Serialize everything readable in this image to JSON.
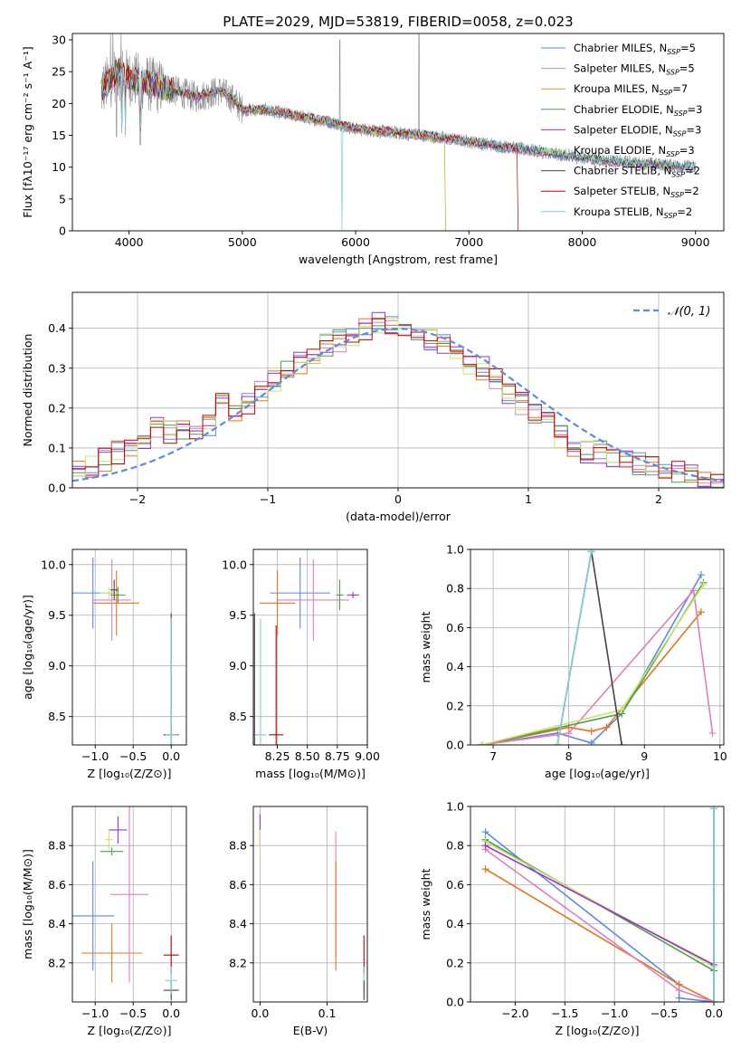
{
  "figure": {
    "title": "PLATE=2029, MJD=53819, FIBERID=0058, z=0.023"
  },
  "colors": {
    "chabrier_miles": "#5b8be0",
    "salpeter_miles": "#e07fbf",
    "kroupa_miles": "#c9a227",
    "chabrier_elodie": "#4a9e4a",
    "salpeter_elodie": "#9b30d0",
    "kroupa_elodie": "#c8e36a",
    "chabrier_stelib": "#444444",
    "salpeter_stelib": "#c00000",
    "kroupa_stelib": "#80d0dc",
    "orange": "#e8731a"
  },
  "chart_data": [
    {
      "id": "spectrum",
      "type": "line",
      "title": "PLATE=2029, MJD=53819, FIBERID=0058, z=0.023",
      "xlabel": "wavelength [Angstrom, rest frame]",
      "ylabel": "Flux [fλ10⁻¹⁷ erg cm⁻² s⁻¹ A⁻¹]",
      "xlim": [
        3500,
        9250
      ],
      "ylim": [
        0,
        31
      ],
      "xticks": [
        4000,
        5000,
        6000,
        7000,
        8000,
        9000
      ],
      "yticks": [
        0,
        5,
        10,
        15,
        20,
        25,
        30
      ],
      "legend_position": "upper-right",
      "series": [
        {
          "name": "Chabrier MILES, N_SSP=5",
          "color": "#5b8be0"
        },
        {
          "name": "Salpeter MILES, N_SSP=5",
          "color": "#e07fbf"
        },
        {
          "name": "Kroupa MILES, N_SSP=7",
          "color": "#c9a227"
        },
        {
          "name": "Chabrier ELODIE, N_SSP=3",
          "color": "#4a9e4a"
        },
        {
          "name": "Salpeter ELODIE, N_SSP=3",
          "color": "#9b30d0"
        },
        {
          "name": "Kroupa ELODIE, N_SSP=3",
          "color": "#c8e36a"
        },
        {
          "name": "Chabrier STELIB, N_SSP=2",
          "color": "#444444"
        },
        {
          "name": "Salpeter STELIB, N_SSP=2",
          "color": "#c00000"
        },
        {
          "name": "Kroupa STELIB, N_SSP=2",
          "color": "#80d0dc"
        }
      ],
      "continuum": {
        "x": [
          3750,
          3900,
          4000,
          4200,
          4400,
          4600,
          4800,
          4900,
          5000,
          5200,
          5500,
          5800,
          6000,
          6300,
          6600,
          7000,
          7400,
          7800,
          8200,
          8600,
          9000
        ],
        "y": [
          22,
          25,
          24,
          23,
          22,
          21,
          22,
          21,
          19,
          19,
          18,
          17,
          16,
          15.5,
          15,
          14,
          13,
          12,
          11,
          10.5,
          10
        ]
      }
    },
    {
      "id": "residuals",
      "type": "area",
      "xlabel": "(data-model)/error",
      "ylabel": "Normed distribution",
      "xlim": [
        -2.5,
        2.5
      ],
      "ylim": [
        0,
        0.49
      ],
      "xticks": [
        -2,
        -1,
        0,
        1,
        2
      ],
      "yticks": [
        0.0,
        0.1,
        0.2,
        0.3,
        0.4
      ],
      "grid": true,
      "legend_position": "upper-right",
      "legend": "𝒩(0, 1)",
      "normal_curve_color": "#5b8be0",
      "histogram_bins": [
        -2.5,
        -2.4,
        -2.3,
        -2.2,
        -2.1,
        -2.0,
        -1.9,
        -1.8,
        -1.7,
        -1.6,
        -1.5,
        -1.4,
        -1.3,
        -1.2,
        -1.1,
        -1.0,
        -0.9,
        -0.8,
        -0.7,
        -0.6,
        -0.5,
        -0.4,
        -0.3,
        -0.2,
        -0.1,
        0.0,
        0.1,
        0.2,
        0.3,
        0.4,
        0.5,
        0.6,
        0.7,
        0.8,
        0.9,
        1.0,
        1.1,
        1.2,
        1.3,
        1.4,
        1.5,
        1.6,
        1.7,
        1.8,
        1.9,
        2.0,
        2.1,
        2.2,
        2.3,
        2.4,
        2.5
      ],
      "histogram_mean": [
        0.04,
        0.05,
        0.07,
        0.09,
        0.1,
        0.11,
        0.15,
        0.14,
        0.15,
        0.15,
        0.16,
        0.22,
        0.19,
        0.21,
        0.24,
        0.27,
        0.29,
        0.31,
        0.33,
        0.36,
        0.37,
        0.37,
        0.4,
        0.41,
        0.41,
        0.4,
        0.38,
        0.37,
        0.36,
        0.34,
        0.31,
        0.3,
        0.27,
        0.24,
        0.21,
        0.18,
        0.16,
        0.13,
        0.1,
        0.09,
        0.09,
        0.08,
        0.07,
        0.06,
        0.05,
        0.04,
        0.04,
        0.03,
        0.02,
        0.02
      ]
    },
    {
      "id": "age-vs-z",
      "type": "scatter",
      "xlabel": "Z [log₁₀(Z/Z⊙)]",
      "ylabel": "age  [log₁₀(age/yr)]",
      "xlim": [
        -1.3,
        0.2
      ],
      "ylim": [
        8.22,
        10.15
      ],
      "xticks": [
        -1.0,
        -0.5,
        0.0
      ],
      "yticks": [
        8.5,
        9.0,
        9.5,
        10.0
      ],
      "grid": true,
      "points": [
        {
          "x": -1.03,
          "y": 9.72,
          "xerr": 0.28,
          "yerr": 0.35,
          "color": "#5b8be0"
        },
        {
          "x": -0.72,
          "y": 9.62,
          "xerr": 0.3,
          "yerr": 0.32,
          "color": "#e8731a"
        },
        {
          "x": -0.78,
          "y": 9.65,
          "xerr": 0.25,
          "yerr": 0.4,
          "color": "#e07fbf"
        },
        {
          "x": -0.7,
          "y": 9.7,
          "xerr": 0.1,
          "yerr": 0.08,
          "color": "#4a9e4a"
        },
        {
          "x": -0.82,
          "y": 9.72,
          "xerr": 0.12,
          "yerr": 0.06,
          "color": "#c8e36a"
        },
        {
          "x": -0.75,
          "y": 9.75,
          "xerr": 0.05,
          "yerr": 0.1,
          "color": "#444444"
        },
        {
          "x": 0.0,
          "y": 8.32,
          "xerr": 0.1,
          "yerr": 1.2,
          "color": "#444444"
        },
        {
          "x": 0.0,
          "y": 8.32,
          "xerr": 0.08,
          "yerr": 1.15,
          "color": "#80d0dc"
        }
      ]
    },
    {
      "id": "age-vs-mass",
      "type": "scatter",
      "xlabel": "mass [log₁₀(M/M⊙)]",
      "ylabel": "",
      "xlim": [
        8.05,
        9.0
      ],
      "ylim": [
        8.22,
        10.15
      ],
      "xticks": [
        8.25,
        8.5,
        8.75,
        9.0
      ],
      "yticks": [
        8.5,
        9.0,
        9.5,
        10.0
      ],
      "grid": true,
      "points": [
        {
          "x": 8.44,
          "y": 9.72,
          "xerr": 0.25,
          "yerr": 0.35,
          "color": "#5b8be0"
        },
        {
          "x": 8.25,
          "y": 9.62,
          "xerr": 0.15,
          "yerr": 0.32,
          "color": "#e8731a"
        },
        {
          "x": 8.55,
          "y": 9.65,
          "xerr": 0.3,
          "yerr": 0.4,
          "color": "#e07fbf"
        },
        {
          "x": 8.77,
          "y": 9.7,
          "xerr": 0.03,
          "yerr": 0.15,
          "color": "#4a9e4a"
        },
        {
          "x": 8.88,
          "y": 9.7,
          "xerr": 0.05,
          "yerr": 0.03,
          "color": "#9b30d0"
        },
        {
          "x": 8.06,
          "y": 8.32,
          "xerr": 0.02,
          "yerr": 1.2,
          "color": "#444444"
        },
        {
          "x": 8.24,
          "y": 8.32,
          "xerr": 0.06,
          "yerr": 1.08,
          "color": "#c00000"
        },
        {
          "x": 8.11,
          "y": 8.32,
          "xerr": 0.05,
          "yerr": 1.15,
          "color": "#80d0dc"
        }
      ]
    },
    {
      "id": "weight-vs-age",
      "type": "line",
      "xlabel": "age  [log₁₀(age/yr)]",
      "ylabel": "mass weight",
      "xlim": [
        6.7,
        10.05
      ],
      "ylim": [
        0,
        1.0
      ],
      "xticks": [
        7,
        8,
        9,
        10
      ],
      "yticks": [
        0.0,
        0.2,
        0.4,
        0.6,
        0.8,
        1.0
      ],
      "grid": true,
      "series": [
        {
          "color": "#5b8be0",
          "x": [
            6.85,
            7.85,
            8.3,
            8.7,
            9.75
          ],
          "y": [
            0.0,
            0.06,
            0.01,
            0.16,
            0.87
          ]
        },
        {
          "color": "#e8731a",
          "x": [
            6.85,
            8.0,
            8.3,
            8.5,
            9.75
          ],
          "y": [
            0.0,
            0.09,
            0.07,
            0.09,
            0.68
          ]
        },
        {
          "color": "#e07fbf",
          "x": [
            6.85,
            8.0,
            9.65,
            9.9
          ],
          "y": [
            0.0,
            0.06,
            0.79,
            0.06
          ]
        },
        {
          "color": "#4a9e4a",
          "x": [
            6.85,
            8.7,
            9.78
          ],
          "y": [
            0.0,
            0.16,
            0.83
          ]
        },
        {
          "color": "#c8e36a",
          "x": [
            6.85,
            8.7,
            9.78
          ],
          "y": [
            0.0,
            0.18,
            0.82
          ]
        },
        {
          "color": "#444444",
          "x": [
            7.85,
            8.3,
            8.7
          ],
          "y": [
            0.0,
            0.99,
            0.0
          ]
        },
        {
          "color": "#80d0dc",
          "x": [
            7.85,
            8.3
          ],
          "y": [
            0.0,
            0.99
          ]
        }
      ]
    },
    {
      "id": "mass-vs-z",
      "type": "scatter",
      "xlabel": "Z [log₁₀(Z/Z⊙)]",
      "ylabel": "mass [log₁₀(M/M⊙)]",
      "xlim": [
        -1.3,
        0.2
      ],
      "ylim": [
        8.0,
        9.0
      ],
      "xticks": [
        -1.0,
        -0.5,
        0.0
      ],
      "yticks": [
        8.2,
        8.4,
        8.6,
        8.8
      ],
      "grid": true,
      "points": [
        {
          "x": -1.03,
          "y": 8.44,
          "xerr": 0.28,
          "yerr": 0.28,
          "color": "#5b8be0"
        },
        {
          "x": -0.78,
          "y": 8.25,
          "xerr": 0.4,
          "yerr": 0.15,
          "color": "#e8731a"
        },
        {
          "x": -0.55,
          "y": 8.55,
          "xerr": 0.25,
          "yerr": 0.45,
          "color": "#e07fbf"
        },
        {
          "x": -0.78,
          "y": 8.77,
          "xerr": 0.15,
          "yerr": 0.02,
          "color": "#4a9e4a"
        },
        {
          "x": -0.7,
          "y": 8.88,
          "xerr": 0.12,
          "yerr": 0.07,
          "color": "#9b30d0"
        },
        {
          "x": -0.82,
          "y": 8.83,
          "xerr": 0.05,
          "yerr": 0.05,
          "color": "#c8e36a"
        },
        {
          "x": 0.0,
          "y": 8.06,
          "xerr": 0.1,
          "yerr": 0.05,
          "color": "#444444"
        },
        {
          "x": 0.0,
          "y": 8.24,
          "xerr": 0.1,
          "yerr": 0.1,
          "color": "#c00000"
        },
        {
          "x": 0.0,
          "y": 8.11,
          "xerr": 0.08,
          "yerr": 0.07,
          "color": "#80d0dc"
        }
      ]
    },
    {
      "id": "mass-vs-ebv",
      "type": "scatter",
      "xlabel": "E(B-V)",
      "ylabel": "",
      "xlim": [
        -0.01,
        0.16
      ],
      "ylim": [
        8.0,
        9.0
      ],
      "xticks": [
        0.0,
        0.1
      ],
      "yticks": [
        8.2,
        8.4,
        8.6,
        8.8
      ],
      "grid": true,
      "points": [
        {
          "x": 0.0,
          "y": 8.88,
          "yerr": 0.08,
          "color": "#9b30d0"
        },
        {
          "x": 0.0,
          "y": 8.83,
          "yerr": 0.05,
          "color": "#c8e36a"
        },
        {
          "x": 0.113,
          "y": 8.55,
          "yerr": 0.32,
          "color": "#e07fbf"
        },
        {
          "x": 0.113,
          "y": 8.44,
          "yerr": 0.28,
          "color": "#e8731a"
        },
        {
          "x": 0.155,
          "y": 8.24,
          "yerr": 0.1,
          "color": "#c00000"
        },
        {
          "x": 0.155,
          "y": 8.11,
          "yerr": 0.07,
          "color": "#80d0dc"
        },
        {
          "x": 0.155,
          "y": 8.06,
          "yerr": 0.05,
          "color": "#444444"
        }
      ]
    },
    {
      "id": "weight-vs-z",
      "type": "line",
      "xlabel": "Z [log₁₀(Z/Z⊙)]",
      "ylabel": "mass weight",
      "xlim": [
        -2.45,
        0.1
      ],
      "ylim": [
        0,
        1.0
      ],
      "xticks": [
        -2.0,
        -1.5,
        -1.0,
        -0.5,
        0.0
      ],
      "yticks": [
        0.0,
        0.2,
        0.4,
        0.6,
        0.8,
        1.0
      ],
      "grid": true,
      "series": [
        {
          "color": "#5b8be0",
          "x": [
            -2.3,
            -0.35,
            -0.35,
            0.0
          ],
          "y": [
            0.87,
            0.09,
            0.02,
            0.0
          ]
        },
        {
          "color": "#e8731a",
          "x": [
            -2.3,
            -0.35,
            0.0
          ],
          "y": [
            0.68,
            0.09,
            0.0
          ]
        },
        {
          "color": "#e07fbf",
          "x": [
            -2.3,
            -0.35,
            0.0
          ],
          "y": [
            0.78,
            0.06,
            0.0
          ]
        },
        {
          "color": "#4a9e4a",
          "x": [
            -2.3,
            0.0
          ],
          "y": [
            0.83,
            0.16
          ]
        },
        {
          "color": "#c8e36a",
          "x": [
            -2.3,
            0.0
          ],
          "y": [
            0.82,
            0.18
          ]
        },
        {
          "color": "#9b30d0",
          "x": [
            -2.3,
            0.0
          ],
          "y": [
            0.8,
            0.19
          ]
        },
        {
          "color": "#444444",
          "x": [
            0.0,
            0.0
          ],
          "y": [
            0.0,
            0.99
          ]
        },
        {
          "color": "#80d0dc",
          "x": [
            0.0,
            0.0
          ],
          "y": [
            0.0,
            0.99
          ]
        }
      ]
    }
  ]
}
